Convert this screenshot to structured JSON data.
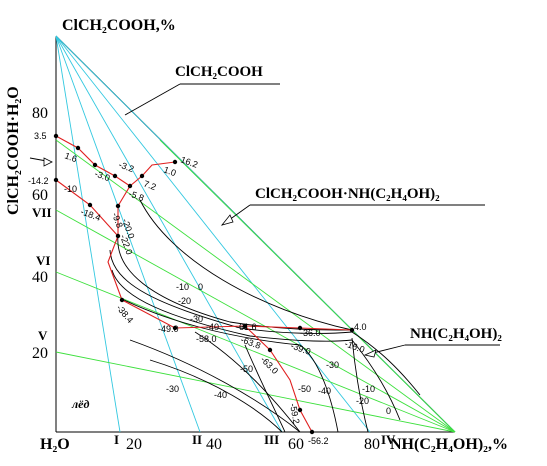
{
  "axes": {
    "top_label": "ClCH₂COOH,%",
    "left_label": "ClCH₂COOH·H₂O",
    "bottom_right_label": "NH(C₂H₄OH)₂,%",
    "origin_label": "H₂O",
    "left_ticks": [
      "80",
      "60",
      "40",
      "20"
    ],
    "bottom_ticks": [
      "20",
      "40",
      "60",
      "80"
    ]
  },
  "roman": {
    "I": "I",
    "II": "II",
    "III": "III",
    "IV": "IV",
    "V": "V",
    "VI": "VI",
    "VII": "VII"
  },
  "fields": {
    "clch2cooh": "ClCH₂COOH",
    "adduct": "ClCH₂COOH·NH(C₂H₄OH)₂",
    "amine": "NH(C₂H₄OH)₂",
    "ice": "лёд"
  },
  "values": {
    "v_3_5": "3.5",
    "v_1_6": "1.6",
    "v_m3_0": "-3.0",
    "v_m3_2": "-3.2",
    "v_7_2": "7.2",
    "v_1_0": "1.0",
    "v_16_2": "16.2",
    "v_m5_8": "-5.8",
    "v_m14_2": "-14.2",
    "v_m10a": "-10",
    "v_m9_8": "-9.8",
    "v_m20_0": "-20.0",
    "v_m18_4": "-18.4",
    "v_m22_0": "-22.0",
    "v_m10b": "-10",
    "v_0a": "0",
    "v_m20a": "-20",
    "v_m30a": "-30",
    "v_m38_4": "-38.4",
    "v_m40a": "-40",
    "v_m49_0": "-49.0",
    "v_m58_0": "-58.0",
    "v_m61_6": "-61.6",
    "v_m63_8": "-63.8",
    "v_m36_0": "-36.0",
    "v_4_0": "4.0",
    "v_m16_0": "-16.0",
    "v_m39_0": "-39.0",
    "v_m63_0": "-63.0",
    "v_m30b": "-30",
    "v_m50a": "-50",
    "v_m50b": "-50",
    "v_m40b": "-40",
    "v_m10c": "-10",
    "v_m20b": "-20",
    "v_0b": "0",
    "v_m30c": "-30",
    "v_m40c": "-40",
    "v_m59_2": "-59.2",
    "v_m56_2": "-56.2"
  }
}
